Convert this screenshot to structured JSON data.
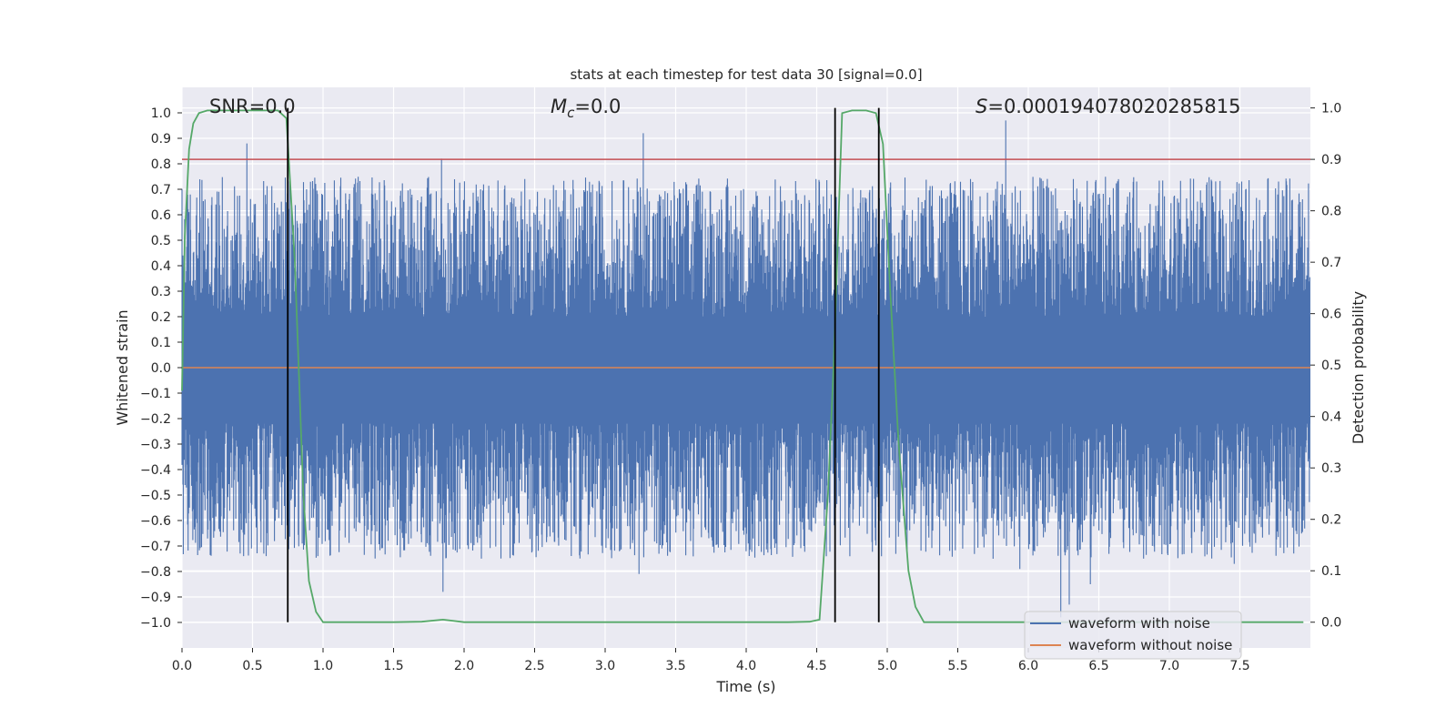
{
  "chart_data": {
    "type": "line",
    "title": "stats at each timestep for test data 30 [signal=0.0]",
    "xlabel": "Time (s)",
    "ylabel": "Whitened strain",
    "y2label": "Detection probability",
    "xlim": [
      0.0,
      8.0
    ],
    "ylim": [
      -1.1,
      1.1
    ],
    "y2lim": [
      -0.05,
      1.04
    ],
    "grid": true,
    "x_ticks": [
      "0.0",
      "0.5",
      "1.0",
      "1.5",
      "2.0",
      "2.5",
      "3.0",
      "3.5",
      "4.0",
      "4.5",
      "5.0",
      "5.5",
      "6.0",
      "6.5",
      "7.0",
      "7.5"
    ],
    "x_tick_values": [
      0.0,
      0.5,
      1.0,
      1.5,
      2.0,
      2.5,
      3.0,
      3.5,
      4.0,
      4.5,
      5.0,
      5.5,
      6.0,
      6.5,
      7.0,
      7.5
    ],
    "y_ticks": [
      "1.0",
      "0.9",
      "0.8",
      "0.7",
      "0.6",
      "0.5",
      "0.4",
      "0.3",
      "0.2",
      "0.1",
      "0.0",
      "−0.1",
      "−0.2",
      "−0.3",
      "−0.4",
      "−0.5",
      "−0.6",
      "−0.7",
      "−0.8",
      "−0.9",
      "−1.0"
    ],
    "y_tick_values": [
      1.0,
      0.9,
      0.8,
      0.7,
      0.6,
      0.5,
      0.4,
      0.3,
      0.2,
      0.1,
      0.0,
      -0.1,
      -0.2,
      -0.3,
      -0.4,
      -0.5,
      -0.6,
      -0.7,
      -0.8,
      -0.9,
      -1.0
    ],
    "y2_ticks": [
      "1.0",
      "0.9",
      "0.8",
      "0.7",
      "0.6",
      "0.5",
      "0.4",
      "0.3",
      "0.2",
      "0.1",
      "0.0"
    ],
    "y2_tick_values": [
      1.0,
      0.9,
      0.8,
      0.7,
      0.6,
      0.5,
      0.4,
      0.3,
      0.2,
      0.1,
      0.0
    ],
    "annotations": {
      "snr": "SNR=0.0",
      "mc_symbol": "M",
      "mc_subscript": "c",
      "mc_value": "=0.0",
      "s_symbol": "S",
      "s_value": "=0.000194078020285815"
    },
    "series": [
      {
        "name": "waveform with noise",
        "color": "#4c72b0",
        "description": "whitened noise, amplitude mostly within ±0.4 with spikes to about ±0.9",
        "spikes": [
          [
            0.46,
            0.88
          ],
          [
            1.84,
            0.82
          ],
          [
            3.27,
            0.92
          ],
          [
            5.84,
            0.97
          ],
          [
            1.85,
            -0.88
          ],
          [
            3.24,
            -0.81
          ],
          [
            6.23,
            -0.98
          ],
          [
            6.29,
            -0.93
          ],
          [
            0.58,
            -0.73
          ],
          [
            5.94,
            -0.79
          ],
          [
            6.44,
            -0.85
          ],
          [
            7.46,
            -0.77
          ]
        ]
      },
      {
        "name": "waveform without noise",
        "color": "#dd8452",
        "x": [
          0.0,
          8.0
        ],
        "y": [
          0.0,
          0.0
        ]
      },
      {
        "name": "detection probability",
        "axis": "right",
        "color": "#55a868",
        "x": [
          0.0,
          0.02,
          0.05,
          0.08,
          0.12,
          0.18,
          0.3,
          0.5,
          0.6,
          0.68,
          0.74,
          0.8,
          0.86,
          0.9,
          0.95,
          1.0,
          1.2,
          1.5,
          1.7,
          1.85,
          2.0,
          2.5,
          3.0,
          3.5,
          4.0,
          4.3,
          4.45,
          4.52,
          4.58,
          4.62,
          4.68,
          4.75,
          4.85,
          4.92,
          4.97,
          5.02,
          5.08,
          5.15,
          5.2,
          5.26,
          5.5,
          6.0,
          6.5,
          7.0,
          7.5,
          7.95
        ],
        "y": [
          0.45,
          0.75,
          0.92,
          0.97,
          0.99,
          0.995,
          0.995,
          0.995,
          0.995,
          0.995,
          0.98,
          0.7,
          0.25,
          0.08,
          0.02,
          0.0,
          0.0,
          0.0,
          0.001,
          0.005,
          0.0,
          0.0,
          0.0,
          0.0,
          0.0,
          0.0,
          0.001,
          0.005,
          0.25,
          0.5,
          0.99,
          0.995,
          0.995,
          0.99,
          0.93,
          0.65,
          0.35,
          0.1,
          0.03,
          0.0,
          0.0,
          0.0,
          0.0,
          0.0,
          0.0,
          0.0
        ]
      }
    ],
    "threshold": {
      "color": "#c44e52",
      "right_axis_value": 0.9
    },
    "vertical_markers": {
      "color": "#000000",
      "x": [
        0.75,
        4.63,
        4.94
      ],
      "y2_range": [
        0.0,
        1.0
      ]
    },
    "legend": {
      "position": "lower-right",
      "entries": [
        {
          "label": "waveform with noise",
          "color": "#4c72b0"
        },
        {
          "label": "waveform without noise",
          "color": "#dd8452"
        }
      ]
    }
  }
}
